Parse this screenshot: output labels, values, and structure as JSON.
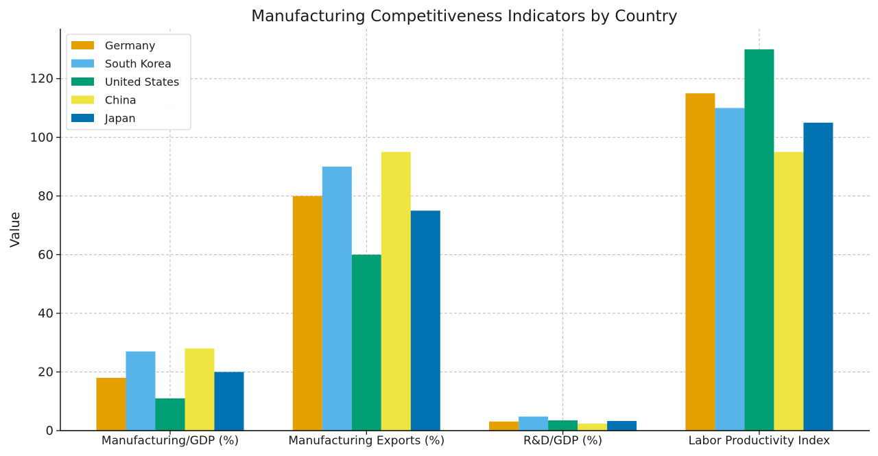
{
  "chart_data": {
    "type": "bar",
    "title": "Manufacturing Competitiveness Indicators by Country",
    "xlabel": "",
    "ylabel": "Value",
    "ylim": [
      0,
      137
    ],
    "yticks": [
      0,
      20,
      40,
      60,
      80,
      100,
      120
    ],
    "grid": true,
    "legend_position": "top-left",
    "categories": [
      "Manufacturing/GDP (%)",
      "Manufacturing Exports (%)",
      "R&D/GDP (%)",
      "Labor Productivity Index"
    ],
    "series": [
      {
        "name": "Germany",
        "color": "#E69F00",
        "values": [
          18,
          80,
          3.1,
          115
        ]
      },
      {
        "name": "South Korea",
        "color": "#56B4E9",
        "values": [
          27,
          90,
          4.8,
          110
        ]
      },
      {
        "name": "United States",
        "color": "#009E73",
        "values": [
          11,
          60,
          3.5,
          130
        ]
      },
      {
        "name": "China",
        "color": "#F0E442",
        "values": [
          28,
          95,
          2.4,
          95
        ]
      },
      {
        "name": "Japan",
        "color": "#0072B2",
        "values": [
          20,
          75,
          3.3,
          105
        ]
      }
    ]
  }
}
